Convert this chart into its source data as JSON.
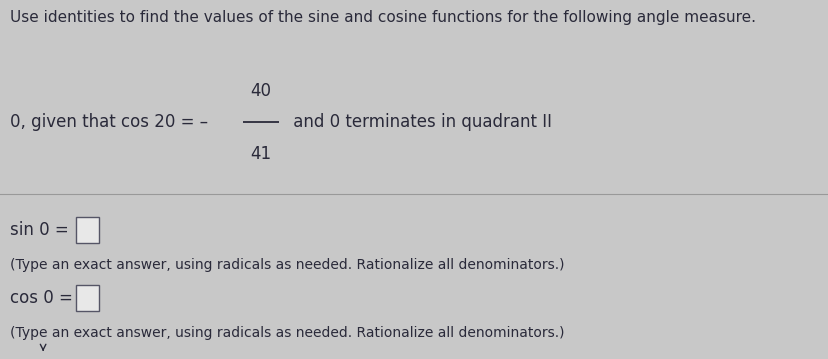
{
  "background_color": "#c8c8c8",
  "upper_bg": "#d8d8d8",
  "lower_bg": "#c0c0c0",
  "title_text": "Use identities to find the values of the sine and cosine functions for the following angle measure.",
  "title_fontsize": 11.0,
  "problem_prefix": "0, given that cos 20 = – ",
  "problem_numerator": "40",
  "problem_denominator": "41",
  "problem_suffix": " and 0 terminates in quadrant II",
  "sin_label": "sin 0 =",
  "cos_label": "cos 0 =",
  "instruction": "(Type an exact answer, using radicals as needed. Rationalize all denominators.)",
  "text_color": "#2a2a3a",
  "box_color": "#e8e8e8",
  "box_edge_color": "#555566",
  "divider_color": "#999999"
}
